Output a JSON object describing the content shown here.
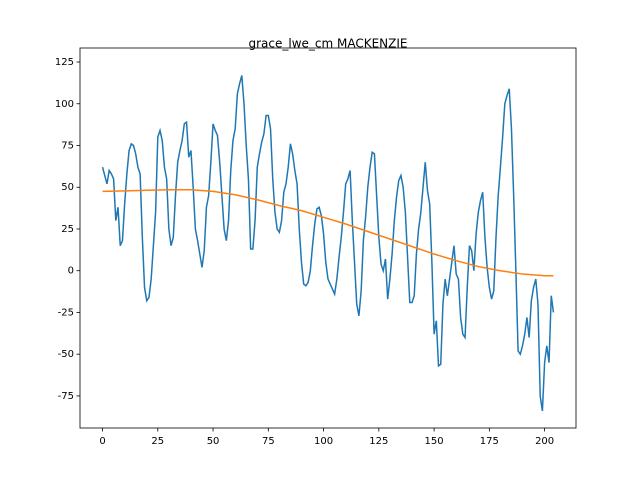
{
  "chart_data": {
    "type": "line",
    "title": "grace_lwe_cm MACKENZIE",
    "xlim": [
      -10.2,
      214.2
    ],
    "ylim": [
      -94.2,
      133.4
    ],
    "xticks": [
      0,
      25,
      50,
      75,
      100,
      125,
      150,
      175,
      200
    ],
    "yticks": [
      -75,
      -50,
      -25,
      0,
      25,
      50,
      75,
      100,
      125
    ],
    "grid": false,
    "series": [
      {
        "color": "#1f77b4",
        "x": [
          0,
          1,
          2,
          3,
          4,
          5,
          6,
          7,
          8,
          9,
          10,
          11,
          12,
          13,
          14,
          15,
          16,
          17,
          18,
          19,
          20,
          21,
          22,
          23,
          24,
          25,
          26,
          27,
          28,
          29,
          30,
          31,
          32,
          33,
          34,
          35,
          36,
          37,
          38,
          39,
          40,
          41,
          42,
          43,
          44,
          45,
          46,
          47,
          48,
          49,
          50,
          51,
          52,
          53,
          54,
          55,
          56,
          57,
          58,
          59,
          60,
          61,
          62,
          63,
          64,
          65,
          66,
          67,
          68,
          69,
          70,
          71,
          72,
          73,
          74,
          75,
          76,
          77,
          78,
          79,
          80,
          81,
          82,
          83,
          84,
          85,
          86,
          87,
          88,
          89,
          90,
          91,
          92,
          93,
          94,
          95,
          96,
          97,
          98,
          99,
          100,
          101,
          102,
          103,
          104,
          105,
          106,
          107,
          108,
          109,
          110,
          111,
          112,
          113,
          114,
          115,
          116,
          117,
          118,
          119,
          120,
          121,
          122,
          123,
          124,
          125,
          126,
          127,
          128,
          129,
          130,
          131,
          132,
          133,
          134,
          135,
          136,
          137,
          138,
          139,
          140,
          141,
          142,
          143,
          144,
          145,
          146,
          147,
          148,
          149,
          150,
          151,
          152,
          153,
          154,
          155,
          156,
          157,
          158,
          159,
          160,
          161,
          162,
          163,
          164,
          165,
          166,
          167,
          168,
          169,
          170,
          171,
          172,
          173,
          174,
          175,
          176,
          177,
          178,
          179,
          180,
          181,
          182,
          183,
          184,
          185,
          186,
          187,
          188,
          189,
          190,
          191,
          192,
          193,
          194,
          195,
          196,
          197,
          198,
          199,
          200,
          201,
          202,
          203,
          204
        ],
        "values": [
          62,
          57,
          52,
          60,
          58,
          55,
          30,
          38,
          15,
          18,
          40,
          58,
          72,
          76,
          75,
          70,
          62,
          58,
          20,
          -10,
          -18,
          -16,
          -5,
          15,
          35,
          80,
          84,
          78,
          62,
          55,
          25,
          15,
          20,
          45,
          65,
          72,
          78,
          88,
          89,
          68,
          72,
          50,
          25,
          18,
          10,
          2,
          12,
          38,
          45,
          65,
          88,
          84,
          81,
          65,
          45,
          25,
          18,
          30,
          60,
          78,
          85,
          106,
          112,
          117,
          100,
          75,
          55,
          13,
          13,
          30,
          62,
          70,
          77,
          82,
          93,
          93,
          85,
          55,
          35,
          25,
          23,
          30,
          47,
          52,
          62,
          76,
          70,
          60,
          52,
          25,
          5,
          -8,
          -9,
          -7,
          0,
          15,
          28,
          37,
          38,
          33,
          22,
          5,
          -5,
          -8,
          -11,
          -14,
          -5,
          8,
          20,
          35,
          52,
          55,
          60,
          30,
          5,
          -20,
          -27,
          -12,
          18,
          32,
          50,
          62,
          71,
          70,
          45,
          20,
          4,
          0,
          7,
          -17,
          -5,
          10,
          30,
          44,
          54,
          57,
          50,
          35,
          8,
          -19,
          -19,
          -15,
          10,
          25,
          35,
          50,
          65,
          48,
          40,
          5,
          -38,
          -30,
          -57,
          -56,
          -20,
          -5,
          -15,
          -5,
          5,
          15,
          -2,
          -5,
          -28,
          -38,
          -40,
          -10,
          15,
          12,
          0,
          22,
          35,
          42,
          47,
          20,
          2,
          -10,
          -17,
          -12,
          20,
          45,
          62,
          80,
          100,
          105,
          109,
          85,
          45,
          0,
          -48,
          -50,
          -45,
          -38,
          -28,
          -40,
          -18,
          -10,
          -5,
          -20,
          -75,
          -84,
          -55,
          -45,
          -55,
          -15,
          -25
        ]
      },
      {
        "color": "#ff7f0e",
        "x": [
          0,
          10,
          20,
          30,
          40,
          50,
          60,
          70,
          80,
          90,
          100,
          110,
          120,
          130,
          140,
          150,
          160,
          170,
          180,
          190,
          200,
          204
        ],
        "values": [
          47.5,
          47.8,
          48.2,
          48.5,
          48.5,
          47.5,
          45.5,
          42.5,
          39,
          36,
          32,
          28,
          23.5,
          19,
          14.5,
          10,
          6,
          2.5,
          0,
          -2,
          -3,
          -3
        ]
      }
    ]
  }
}
